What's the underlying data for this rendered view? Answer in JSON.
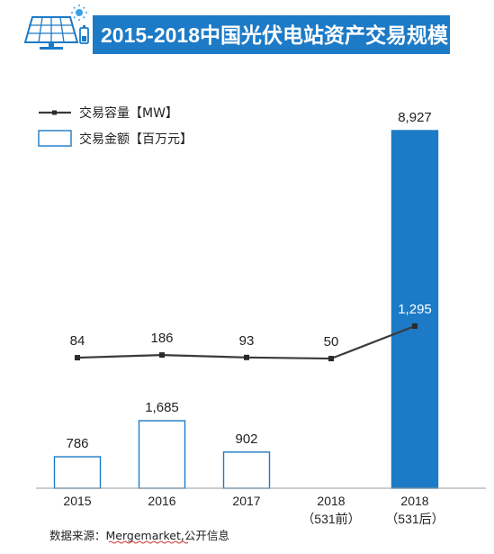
{
  "title": "2015-2018中国光伏电站资产交易规模",
  "icon": "solar-panel-icon",
  "colors": {
    "accent": "#1c7ac6",
    "line": "#3a3a3a",
    "marker": "#2a2a2a",
    "text": "#222222",
    "axis": "#9a9a9a"
  },
  "legend": {
    "line_label": "交易容量【MW】",
    "bar_label": "交易金额【百万元】"
  },
  "source": {
    "prefix": "数据来源：",
    "name": "Mergemarket",
    "suffix": ",公开信息"
  },
  "chart_data": {
    "type": "bar",
    "categories": [
      "2015",
      "2016",
      "2017",
      "2018\n（531前）",
      "2018\n（531后）"
    ],
    "series": [
      {
        "name": "交易金额【百万元】",
        "chart": "bar",
        "values": [
          786,
          1685,
          902,
          null,
          8927
        ],
        "labels": [
          "786",
          "1,685",
          "902",
          "",
          "8,927"
        ],
        "filled": [
          false,
          false,
          false,
          false,
          true
        ]
      },
      {
        "name": "交易容量【MW】",
        "chart": "line",
        "values": [
          84,
          186,
          93,
          50,
          1295
        ],
        "labels": [
          "84",
          "186",
          "93",
          "50",
          "1,295"
        ]
      }
    ],
    "legend_position": "top-left",
    "grid": false
  }
}
